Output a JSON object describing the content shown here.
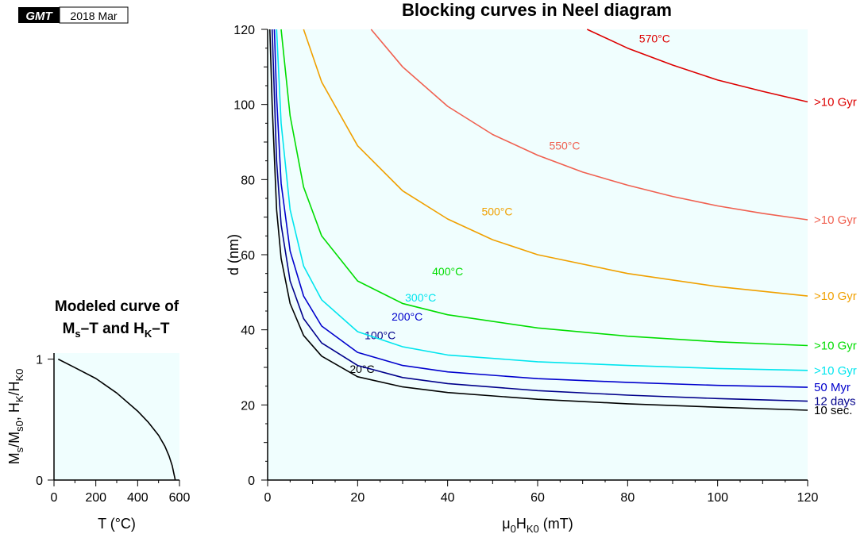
{
  "badge": {
    "logo": "GMT",
    "date": "2018 Mar"
  },
  "chart_data": [
    {
      "type": "line",
      "title": "Blocking curves in Neel diagram",
      "xlabel_main": "μ",
      "xlabel_sub0": "0",
      "xlabel_mid": "H",
      "xlabel_sub1": "K0",
      "xlabel_unit": " (mT)",
      "ylabel": "d (nm)",
      "xlim": [
        0,
        120
      ],
      "ylim": [
        0,
        120
      ],
      "xticks": [
        0,
        20,
        40,
        60,
        80,
        100,
        120
      ],
      "yticks": [
        0,
        20,
        40,
        60,
        80,
        100,
        120
      ],
      "background": "#f0fefe",
      "series": [
        {
          "label": "20°C",
          "end_label": "10 sec.",
          "color": "#000000",
          "x": [
            0.5,
            1,
            2,
            3,
            5,
            8,
            12,
            20,
            30,
            40,
            60,
            80,
            100,
            120
          ],
          "y": [
            120,
            100,
            72,
            59,
            47,
            38.5,
            33,
            27.5,
            24.8,
            23.3,
            21.5,
            20.3,
            19.4,
            18.6
          ],
          "label_x": 21,
          "label_y": 28.5
        },
        {
          "label": "100°C",
          "end_label": "12 days",
          "color": "#00008b",
          "x": [
            1,
            2,
            3,
            5,
            8,
            12,
            20,
            30,
            40,
            60,
            80,
            100,
            120
          ],
          "y": [
            120,
            85,
            68,
            53,
            43,
            36.5,
            30.5,
            27.3,
            25.7,
            23.8,
            22.6,
            21.7,
            21
          ],
          "label_x": 25,
          "label_y": 37.5
        },
        {
          "label": "200°C",
          "end_label": "50 Myr",
          "color": "#0000cd",
          "x": [
            1.5,
            2,
            3,
            5,
            8,
            12,
            20,
            30,
            40,
            60,
            80,
            100,
            120
          ],
          "y": [
            120,
            102,
            79,
            61,
            49,
            41,
            34,
            30.5,
            28.8,
            27,
            26,
            25.2,
            24.7
          ],
          "label_x": 31,
          "label_y": 42.5
        },
        {
          "label": "300°C",
          "end_label": ">10 Gyr",
          "color": "#00e5ee",
          "x": [
            2,
            3,
            5,
            8,
            12,
            20,
            30,
            40,
            60,
            80,
            100,
            120
          ],
          "y": [
            120,
            95,
            72,
            57,
            48,
            39.5,
            35.5,
            33.3,
            31.5,
            30.5,
            29.7,
            29.2
          ],
          "label_x": 34,
          "label_y": 47.5
        },
        {
          "label": "400°C",
          "end_label": ">10 Gyr",
          "color": "#00dd00",
          "x": [
            3,
            5,
            8,
            12,
            20,
            30,
            40,
            60,
            80,
            100,
            120
          ],
          "y": [
            120,
            97,
            78,
            65,
            53,
            47,
            44,
            40.5,
            38.3,
            36.8,
            35.8
          ],
          "label_x": 40,
          "label_y": 54.5
        },
        {
          "label": "500°C",
          "end_label": ">10 Gyr",
          "color": "#f0a000",
          "x": [
            8,
            12,
            20,
            30,
            40,
            50,
            60,
            80,
            100,
            120
          ],
          "y": [
            120,
            106,
            89,
            77,
            69.5,
            64,
            60,
            55,
            51.5,
            49
          ],
          "label_x": 51,
          "label_y": 70.5
        },
        {
          "label": "550°C",
          "end_label": ">10 Gyr",
          "color": "#f06050",
          "x": [
            23,
            30,
            40,
            50,
            60,
            70,
            80,
            90,
            100,
            110,
            120
          ],
          "y": [
            120,
            110,
            99.5,
            92,
            86.5,
            82,
            78.5,
            75.5,
            73,
            71,
            69.3
          ],
          "label_x": 66,
          "label_y": 88
        },
        {
          "label": "570°C",
          "end_label": ">10 Gyr",
          "color": "#dd0000",
          "x": [
            71,
            80,
            90,
            100,
            110,
            120
          ],
          "y": [
            120,
            115,
            110.5,
            106.5,
            103.5,
            100.7
          ],
          "label_x": 86,
          "label_y": 116.5
        }
      ]
    },
    {
      "type": "line",
      "title_line1": "Modeled curve of",
      "title_line2": "M_s–T and H_K–T",
      "xlabel": "T (°C)",
      "ylabel": "Ms/Ms0, HK/HK0",
      "xlim": [
        0,
        600
      ],
      "ylim": [
        0,
        1.05
      ],
      "xticks": [
        0,
        200,
        400,
        600
      ],
      "yticks": [
        0,
        1
      ],
      "background": "#f0fefe",
      "series": [
        {
          "color": "#000000",
          "x": [
            20,
            100,
            200,
            300,
            400,
            450,
            500,
            530,
            550,
            565,
            575,
            580
          ],
          "y": [
            1.0,
            0.93,
            0.84,
            0.72,
            0.57,
            0.48,
            0.37,
            0.28,
            0.2,
            0.12,
            0.04,
            0.0
          ]
        }
      ]
    }
  ]
}
